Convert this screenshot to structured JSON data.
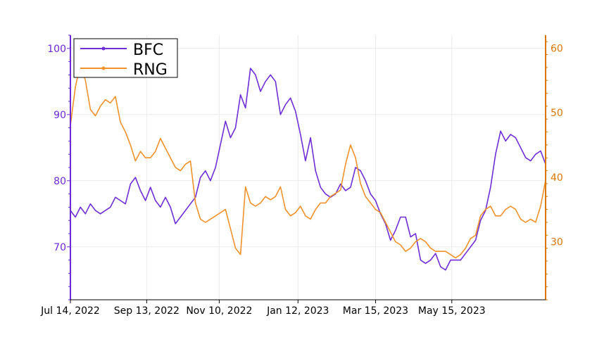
{
  "chart_data": {
    "type": "line",
    "x": [
      "2022-07-14",
      "2022-07-18",
      "2022-07-22",
      "2022-07-26",
      "2022-07-30",
      "2022-08-03",
      "2022-08-07",
      "2022-08-11",
      "2022-08-15",
      "2022-08-19",
      "2022-08-23",
      "2022-08-27",
      "2022-08-31",
      "2022-09-04",
      "2022-09-08",
      "2022-09-12",
      "2022-09-16",
      "2022-09-20",
      "2022-09-24",
      "2022-09-28",
      "2022-10-02",
      "2022-10-06",
      "2022-10-10",
      "2022-10-14",
      "2022-10-18",
      "2022-10-22",
      "2022-10-26",
      "2022-10-30",
      "2022-11-03",
      "2022-11-07",
      "2022-11-11",
      "2022-11-15",
      "2022-11-19",
      "2022-11-23",
      "2022-11-27",
      "2022-12-01",
      "2022-12-05",
      "2022-12-09",
      "2022-12-13",
      "2022-12-17",
      "2022-12-21",
      "2022-12-25",
      "2022-12-29",
      "2023-01-02",
      "2023-01-06",
      "2023-01-10",
      "2023-01-14",
      "2023-01-18",
      "2023-01-22",
      "2023-01-26",
      "2023-01-30",
      "2023-02-03",
      "2023-02-07",
      "2023-02-11",
      "2023-02-15",
      "2023-02-19",
      "2023-02-23",
      "2023-02-27",
      "2023-03-03",
      "2023-03-07",
      "2023-03-11",
      "2023-03-15",
      "2023-03-19",
      "2023-03-23",
      "2023-03-27",
      "2023-03-31",
      "2023-04-04",
      "2023-04-08",
      "2023-04-12",
      "2023-04-16",
      "2023-04-20",
      "2023-04-24",
      "2023-04-28",
      "2023-05-02",
      "2023-05-06",
      "2023-05-10",
      "2023-05-14",
      "2023-05-18",
      "2023-05-22",
      "2023-05-26",
      "2023-05-30",
      "2023-06-03",
      "2023-06-07",
      "2023-06-11",
      "2023-06-15",
      "2023-06-19",
      "2023-06-23",
      "2023-06-27",
      "2023-07-01",
      "2023-07-05",
      "2023-07-09",
      "2023-07-13",
      "2023-07-17",
      "2023-07-21",
      "2023-07-25",
      "2023-07-29"
    ],
    "series": [
      {
        "name": "BFC",
        "axis": "left",
        "values": [
          75.5,
          74.5,
          76,
          75,
          76.5,
          75.5,
          75,
          75.5,
          76,
          77.5,
          77,
          76.5,
          79.5,
          80.5,
          78.5,
          77,
          79,
          77,
          76,
          77.5,
          76,
          73.5,
          74.5,
          75.5,
          76.5,
          77.5,
          80.5,
          81.5,
          80,
          82,
          85.5,
          89,
          86.5,
          88,
          93,
          91,
          97,
          96,
          93.5,
          95,
          96,
          95,
          90,
          91.5,
          92.5,
          90.5,
          87,
          83,
          86.5,
          81.5,
          79,
          78,
          77.5,
          78,
          79.5,
          78.5,
          79,
          82,
          81.5,
          80,
          78,
          77,
          75,
          73.5,
          71,
          72.5,
          74.5,
          74.5,
          71.5,
          72,
          68,
          67.5,
          68,
          69,
          67,
          66.5,
          68,
          68,
          68,
          69,
          70,
          71,
          74,
          75.5,
          79,
          84,
          87.5,
          86,
          87,
          86.5,
          85,
          83.5,
          83,
          84,
          84.5,
          82.5
        ]
      },
      {
        "name": "RNG",
        "axis": "right",
        "values": [
          48,
          54,
          57.5,
          55,
          50.5,
          49.5,
          51,
          52,
          51.5,
          52.5,
          48.5,
          47,
          45,
          42.5,
          44,
          43,
          43,
          44,
          46,
          44.5,
          43,
          41.5,
          41,
          42,
          42.5,
          36,
          33.5,
          33,
          33.5,
          34,
          34.5,
          35,
          32,
          29,
          28,
          38.5,
          36,
          35.5,
          36,
          37,
          36.5,
          37,
          38.5,
          35,
          34,
          34.5,
          35.5,
          34,
          33.5,
          35,
          36,
          36,
          37,
          37.5,
          38,
          42,
          45,
          43,
          39,
          37,
          36,
          35,
          34.5,
          33,
          31.5,
          30,
          29.5,
          28.5,
          29,
          30,
          30.5,
          30,
          29,
          28.5,
          28.5,
          28.5,
          28,
          27.5,
          28,
          29,
          30.5,
          31,
          34,
          35,
          35.5,
          34,
          34,
          35,
          35.5,
          35,
          33.5,
          33,
          33.5,
          33,
          35.5,
          39.5
        ]
      }
    ],
    "xticks": [
      "Jul 14, 2022",
      "Sep 13, 2022",
      "Nov 10, 2022",
      "Jan 12, 2023",
      "Mar 15, 2023",
      "May 15, 2023"
    ],
    "xtick_dates": [
      "2022-07-14",
      "2022-09-13",
      "2022-11-10",
      "2023-01-12",
      "2023-03-15",
      "2023-05-15"
    ],
    "xlim": [
      "2022-07-14",
      "2023-07-29"
    ],
    "left_axis": {
      "ylim": [
        62,
        102
      ],
      "ticks": [
        70,
        80,
        90,
        100
      ],
      "color": "#6d28d9"
    },
    "right_axis": {
      "ylim": [
        21,
        62
      ],
      "ticks": [
        30,
        40,
        50,
        60
      ],
      "color": "#d97706"
    },
    "series_colors": {
      "BFC": "#6d2ed6",
      "RNG": "#f0922b"
    },
    "grid": true,
    "legend": "top-left"
  }
}
